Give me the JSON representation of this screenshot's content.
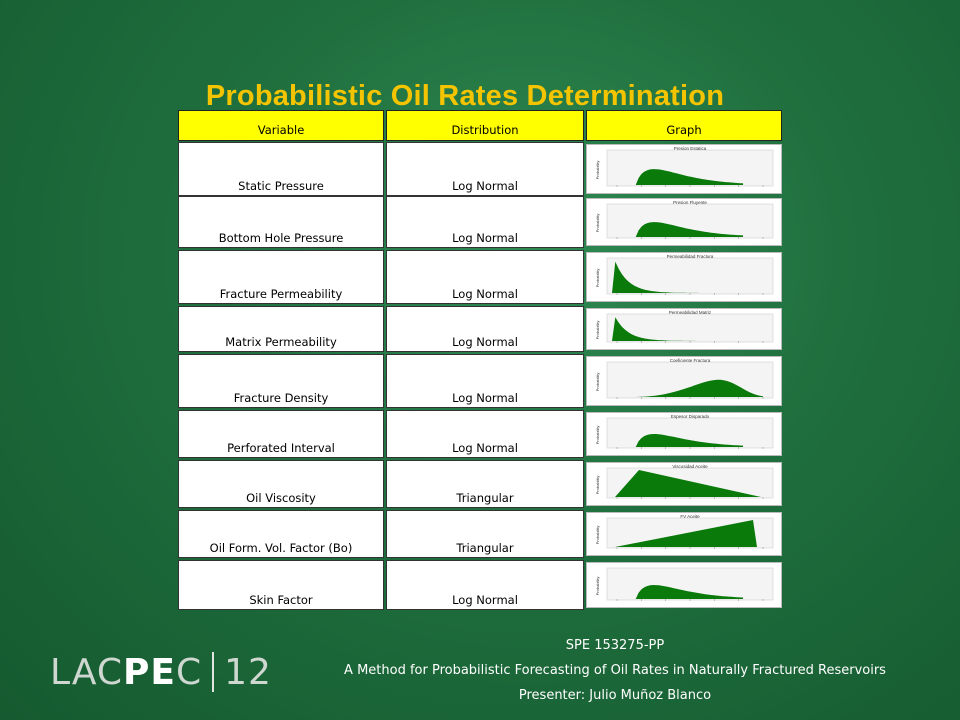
{
  "title": "Probabilistic Oil Rates Determination",
  "table": {
    "headers": [
      "Variable",
      "Distribution",
      "Graph"
    ],
    "rows": [
      {
        "variable": "Static Pressure",
        "distribution": "Log Normal",
        "graph_title": "Presion Estatica",
        "shape": "lognormal"
      },
      {
        "variable": "Bottom Hole Pressure",
        "distribution": "Log Normal",
        "graph_title": "Presion Fluyente",
        "shape": "lognormal"
      },
      {
        "variable": "Fracture Permeability",
        "distribution": "Log Normal",
        "graph_title": "Permeabilidad Fractura",
        "shape": "decay"
      },
      {
        "variable": "Matrix Permeability",
        "distribution": "Log Normal",
        "graph_title": "Permeabilidad Matriz",
        "shape": "decay"
      },
      {
        "variable": "Fracture Density",
        "distribution": "Log Normal",
        "graph_title": "Coeficiente Fractura",
        "shape": "rightskew"
      },
      {
        "variable": "Perforated Interval",
        "distribution": "Log Normal",
        "graph_title": "Espesor Disparado",
        "shape": "lognormal"
      },
      {
        "variable": "Oil Viscosity",
        "distribution": "Triangular",
        "graph_title": "Viscosidad Aceite",
        "shape": "triangle-left"
      },
      {
        "variable": "Oil Form. Vol. Factor (Bo)",
        "distribution": "Triangular",
        "graph_title": "FV Aceite",
        "shape": "triangle-right"
      },
      {
        "variable": "Skin Factor",
        "distribution": "Log Normal",
        "graph_title": "",
        "shape": "lognormal"
      }
    ]
  },
  "graph_axis_label": "Probability",
  "graph_fill_color": "#0a7a0a",
  "header_color": "#ffff00",
  "title_color": "#f5c400",
  "footer": {
    "line1": "SPE 153275-PP",
    "line2": "A Method for Probabilistic Forecasting of Oil Rates in Naturally Fractured Reservoirs",
    "line3": "Presenter: Julio Muñoz Blanco"
  },
  "logo": {
    "part1": "LAC",
    "part2": "PE",
    "part3": "C",
    "number": "12"
  }
}
